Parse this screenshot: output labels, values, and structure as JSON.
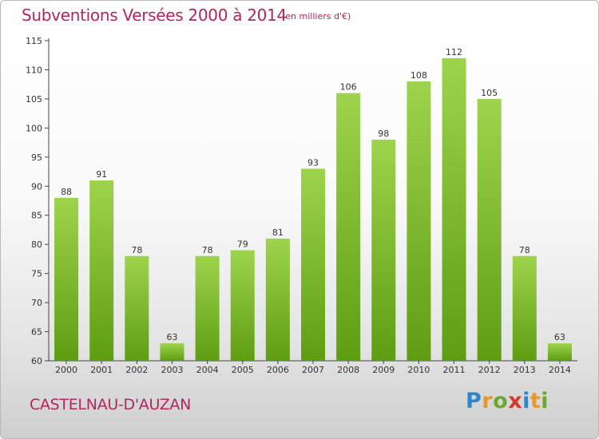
{
  "header": {
    "title": "Subventions Versées 2000 à 2014",
    "unit_note": "(en milliers d'€)"
  },
  "footer": {
    "commune": "CASTELNAU-D'AUZAN",
    "logo_text": "Proxiti"
  },
  "colors": {
    "title": "#b0285a",
    "bar_top": "#9ed44d",
    "bar_bottom": "#5e9d12"
  },
  "chart_data": {
    "type": "bar",
    "title": "Subventions Versées 2000 à 2014",
    "subtitle": "(en milliers d'€)",
    "categories": [
      "2000",
      "2001",
      "2002",
      "2003",
      "2004",
      "2005",
      "2006",
      "2007",
      "2008",
      "2009",
      "2010",
      "2011",
      "2012",
      "2013",
      "2014"
    ],
    "values": [
      88,
      91,
      78,
      63,
      78,
      79,
      81,
      93,
      106,
      98,
      108,
      112,
      105,
      78,
      63
    ],
    "ylim": [
      60,
      115
    ],
    "yticks": [
      60,
      65,
      70,
      75,
      80,
      85,
      90,
      95,
      100,
      105,
      110,
      115
    ],
    "grid": false,
    "data_labels": true,
    "xlabel": "",
    "ylabel": ""
  }
}
